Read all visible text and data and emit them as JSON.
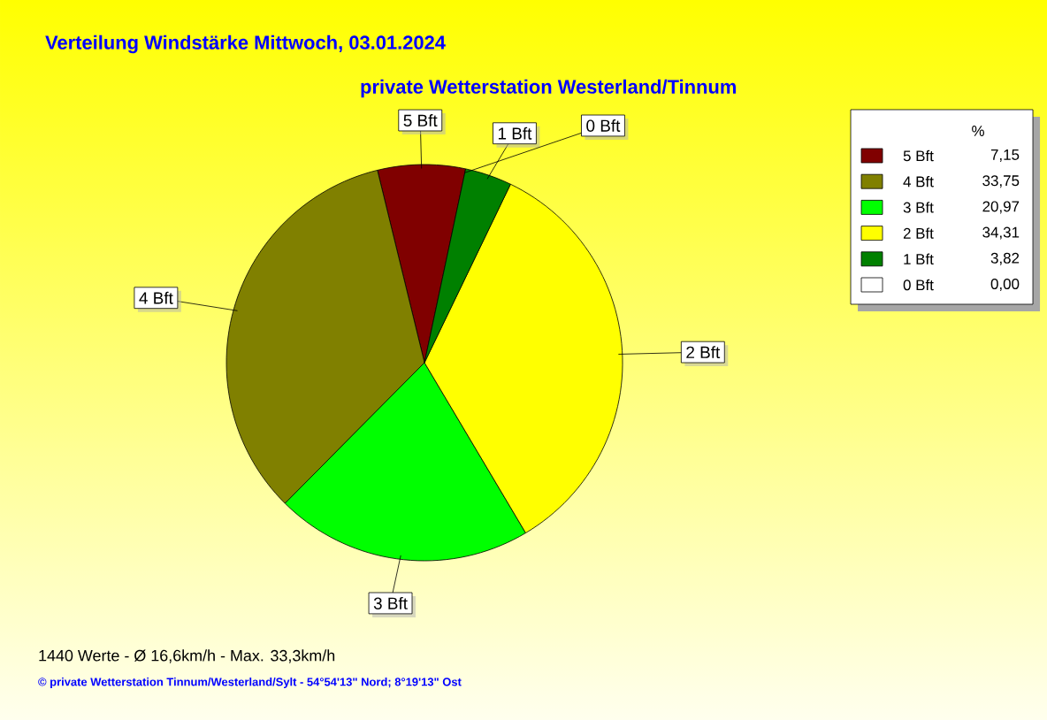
{
  "chart_data": {
    "type": "pie",
    "title": "Verteilung Windstärke  Mittwoch, 03.01.2024",
    "subtitle": "private Wetterstation Westerland/Tinnum",
    "categories": [
      "5 Bft",
      "4 Bft",
      "3 Bft",
      "2 Bft",
      "1 Bft",
      "0 Bft"
    ],
    "values": [
      7.15,
      33.75,
      20.97,
      34.31,
      3.82,
      0.0
    ],
    "value_labels": [
      "7,15",
      "33,75",
      "20,97",
      "34,31",
      "3,82",
      "0,00"
    ],
    "colors": [
      "#800000",
      "#808000",
      "#00ff00",
      "#ffff00",
      "#008000",
      "#ffffff"
    ],
    "legend": "right",
    "legend_title": "%",
    "annotations": [
      "1440 Werte   -   Ø 16,6km/h  -  Max. 33,3km/h",
      "© private Wetterstation Tinnum/Westerland/Sylt   -   54°54'13\" Nord; 8°19'13\" Ost"
    ]
  }
}
